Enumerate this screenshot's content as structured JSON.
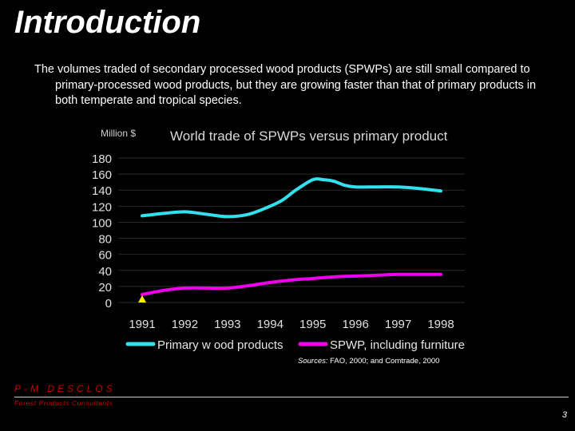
{
  "slide": {
    "title": "Introduction",
    "body": "The volumes traded of secondary processed wood products (SPWPs) are still small compared to primary-processed wood products, but they are growing faster than that of primary products in both temperate and tropical species.",
    "sources_label": "Sources:",
    "sources_text": " FAO, 2000; and Comtrade, 2000",
    "brand": "P-M DESCLOS",
    "brand_sub": "Forest Products Consultants",
    "page_number": "3"
  },
  "chart_data": {
    "type": "line",
    "title": "World trade of SPWPs versus primary product",
    "ylabel": "Million $",
    "xlabel": "",
    "x": [
      "1991",
      "1992",
      "1993",
      "1994",
      "1995",
      "1996",
      "1997",
      "1998"
    ],
    "y_ticks": [
      0,
      20,
      40,
      60,
      80,
      100,
      120,
      140,
      160,
      180
    ],
    "ylim": [
      0,
      180
    ],
    "legend_position": "bottom",
    "series": [
      {
        "name": "Primary w ood products",
        "color": "#33e0ee",
        "points": [
          [
            1991,
            108
          ],
          [
            1991.5,
            111
          ],
          [
            1992,
            113
          ],
          [
            1992.5,
            110
          ],
          [
            1993,
            107
          ],
          [
            1993.5,
            110
          ],
          [
            1994,
            120
          ],
          [
            1994.3,
            128
          ],
          [
            1994.6,
            140
          ],
          [
            1995,
            153
          ],
          [
            1995.25,
            153
          ],
          [
            1995.5,
            151
          ],
          [
            1995.75,
            146
          ],
          [
            1996,
            144
          ],
          [
            1996.5,
            144
          ],
          [
            1997,
            144
          ],
          [
            1997.5,
            142
          ],
          [
            1998,
            139
          ]
        ]
      },
      {
        "name": "SPWP, including furniture",
        "color": "#ee00ee",
        "points": [
          [
            1991,
            10
          ],
          [
            1991.5,
            15
          ],
          [
            1992,
            18
          ],
          [
            1992.5,
            18
          ],
          [
            1993,
            18
          ],
          [
            1993.5,
            21
          ],
          [
            1994,
            25
          ],
          [
            1994.5,
            28
          ],
          [
            1995,
            30
          ],
          [
            1995.5,
            32
          ],
          [
            1996,
            33
          ],
          [
            1996.5,
            34
          ],
          [
            1997,
            35
          ],
          [
            1997.5,
            35
          ],
          [
            1998,
            35
          ]
        ]
      }
    ],
    "marker": {
      "x": 1991,
      "y": 0,
      "shape": "triangle",
      "color": "#ffee00"
    }
  }
}
